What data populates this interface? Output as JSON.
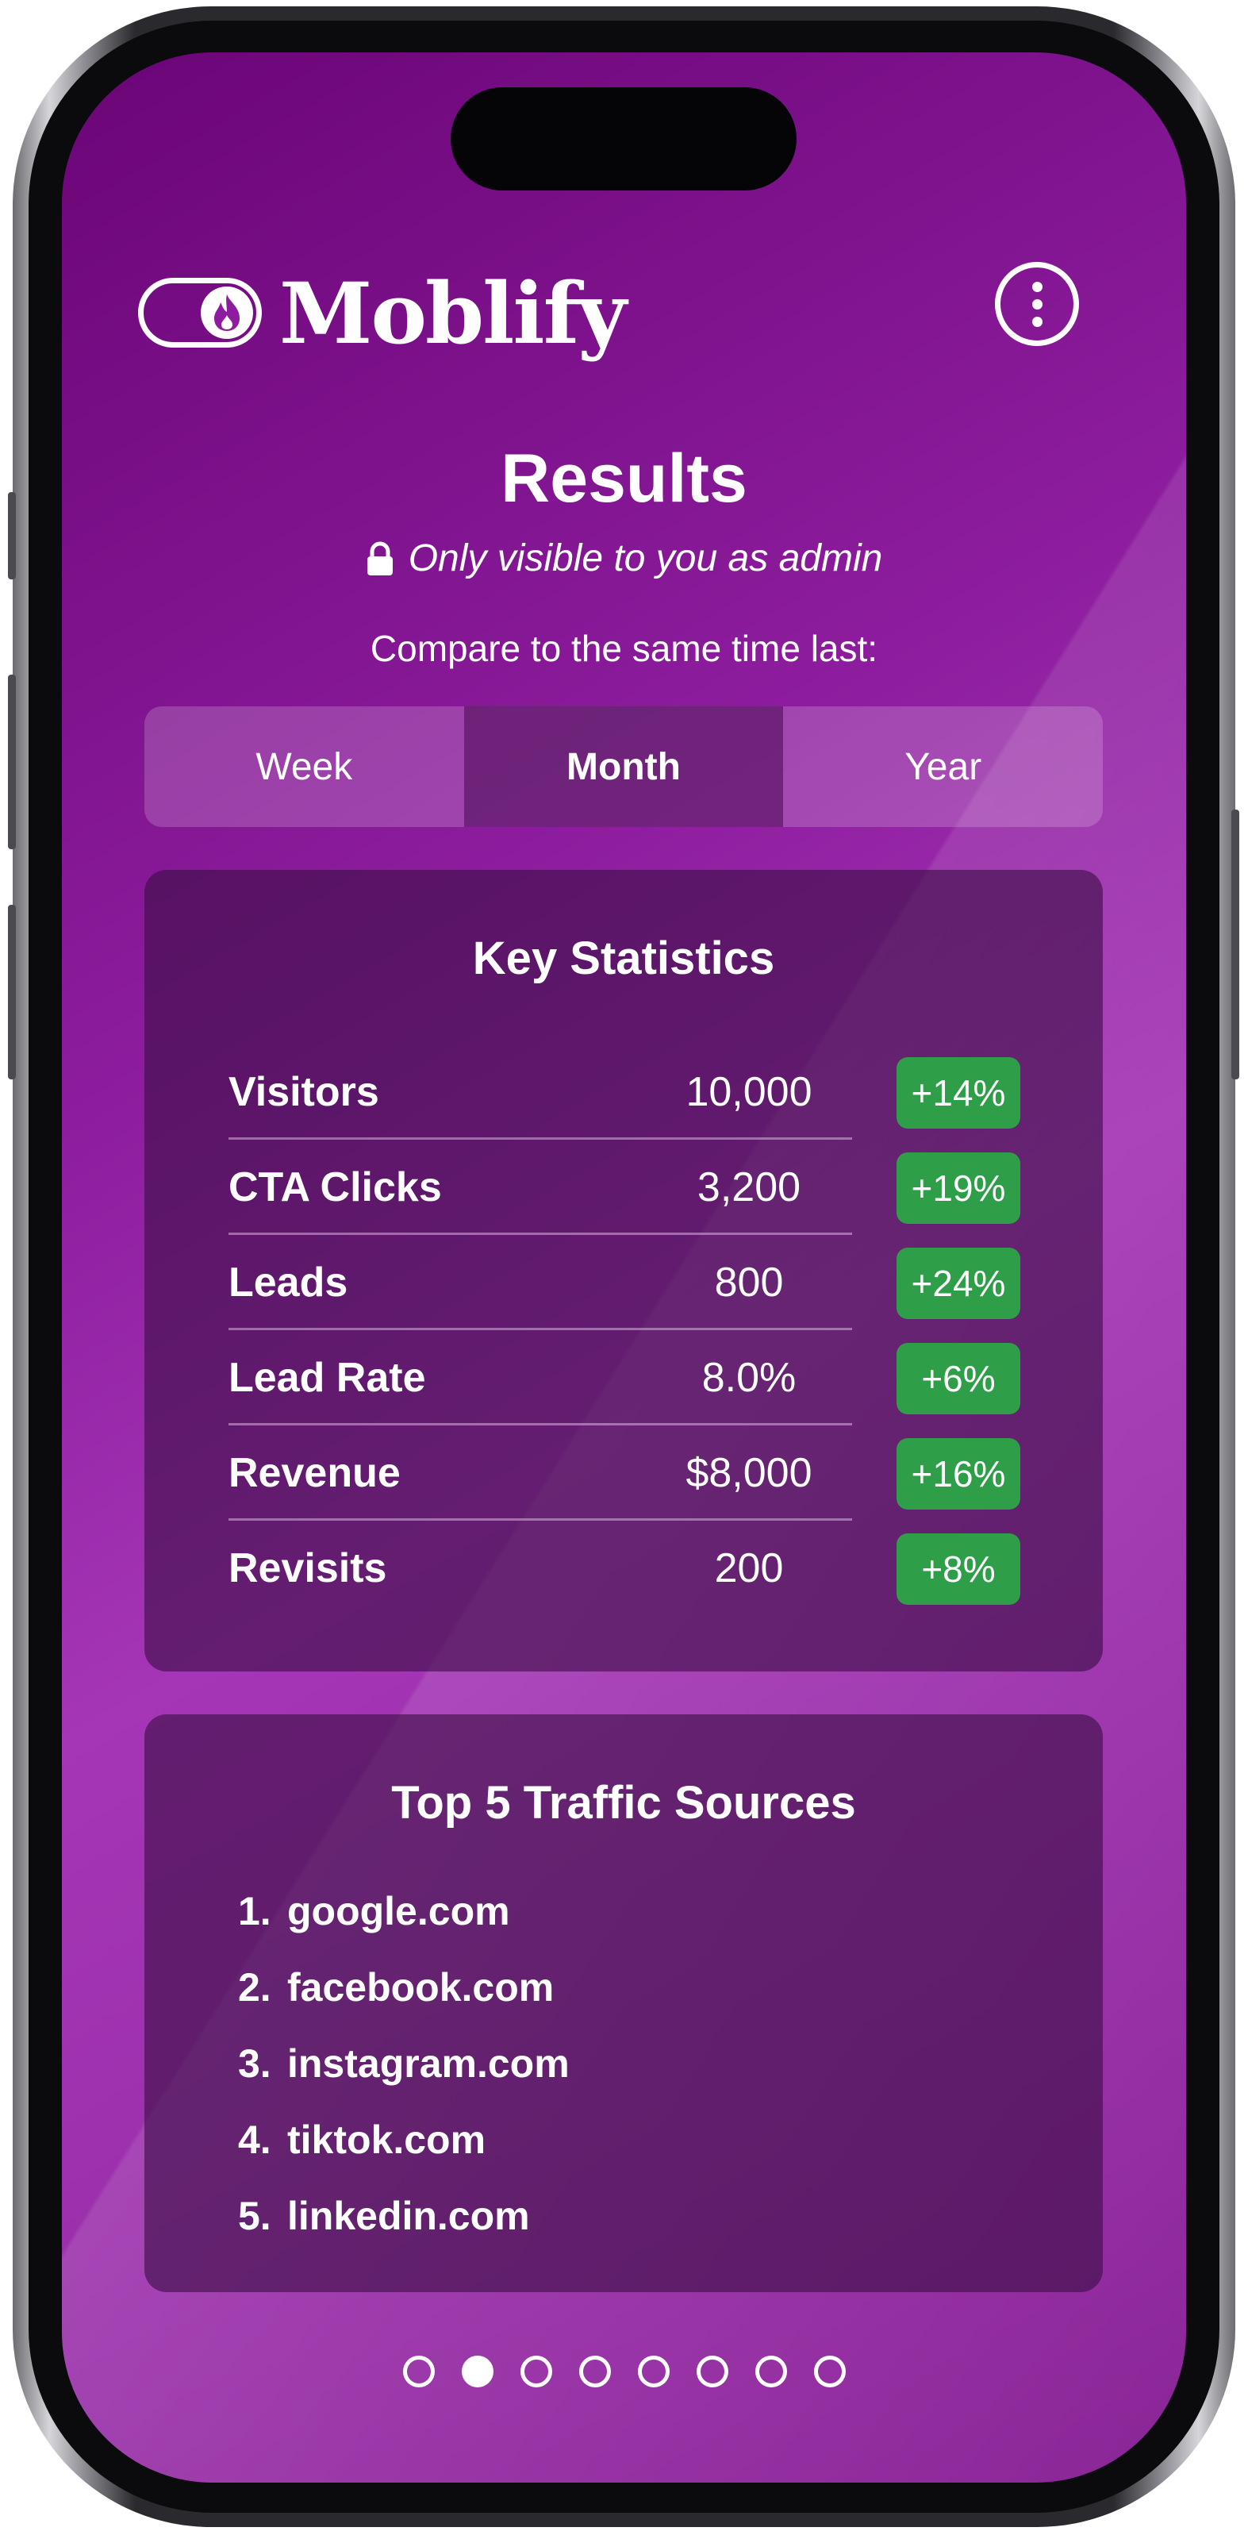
{
  "app": {
    "name": "Moblify",
    "menu_icon": "more-vertical-icon"
  },
  "header": {
    "title": "Results",
    "admin_note": "Only visible to you as admin",
    "lock_icon": "lock-icon"
  },
  "compare": {
    "label": "Compare to the same time last:",
    "options": [
      "Week",
      "Month",
      "Year"
    ],
    "selected": "Month"
  },
  "key_statistics": {
    "title": "Key Statistics",
    "rows": [
      {
        "label": "Visitors",
        "value": "10,000",
        "change": "+14%"
      },
      {
        "label": "CTA Clicks",
        "value": "3,200",
        "change": "+19%"
      },
      {
        "label": "Leads",
        "value": "800",
        "change": "+24%"
      },
      {
        "label": "Lead Rate",
        "value": "8.0%",
        "change": "+6%"
      },
      {
        "label": "Revenue",
        "value": "$8,000",
        "change": "+16%"
      },
      {
        "label": "Revisits",
        "value": "200",
        "change": "+8%"
      }
    ]
  },
  "traffic_sources": {
    "title": "Top 5 Traffic Sources",
    "items": [
      {
        "num": "1.",
        "name": "google.com"
      },
      {
        "num": "2.",
        "name": "facebook.com"
      },
      {
        "num": "3.",
        "name": "instagram.com"
      },
      {
        "num": "4.",
        "name": "tiktok.com"
      },
      {
        "num": "5.",
        "name": "linkedin.com"
      }
    ]
  },
  "pager": {
    "total": 8,
    "active_index": 1
  },
  "colors": {
    "badge_green": "#2f9e48",
    "brand_purple": "#8d1d9e"
  }
}
